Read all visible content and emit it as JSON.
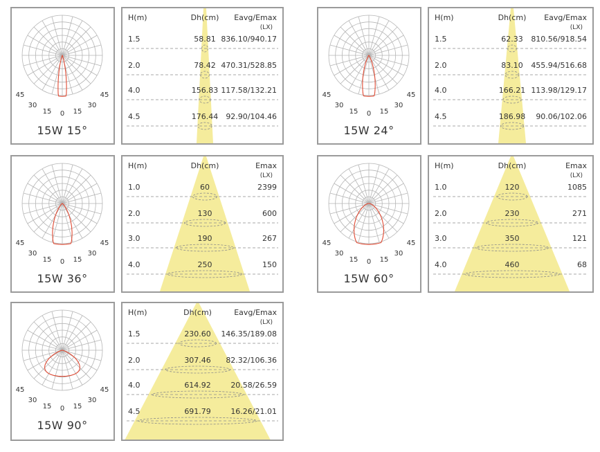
{
  "chart_data": [
    {
      "type": "table",
      "title": "15W 15°",
      "beam_deg": 15,
      "polar_ticks": [
        "45",
        "30",
        "15",
        "0",
        "15",
        "30",
        "45"
      ],
      "columns": [
        "H(m)",
        "Dh(cm)",
        "Eavg/Emax"
      ],
      "unit": "(LX)",
      "rows": [
        {
          "h": "1.5",
          "dh": "58.81",
          "e": "836.10/940.17"
        },
        {
          "h": "2.0",
          "dh": "78.42",
          "e": "470.31/528.85"
        },
        {
          "h": "4.0",
          "dh": "156.83",
          "e": "117.58/132.21"
        },
        {
          "h": "4.5",
          "dh": "176.44",
          "e": "92.90/104.46"
        }
      ]
    },
    {
      "type": "table",
      "title": "15W 24°",
      "beam_deg": 24,
      "polar_ticks": [
        "45",
        "30",
        "15",
        "0",
        "15",
        "30",
        "45"
      ],
      "columns": [
        "H(m)",
        "Dh(cm)",
        "Eavg/Emax"
      ],
      "unit": "(LX)",
      "rows": [
        {
          "h": "1.5",
          "dh": "62.33",
          "e": "810.56/918.54"
        },
        {
          "h": "2.0",
          "dh": "83.10",
          "e": "455.94/516.68"
        },
        {
          "h": "4.0",
          "dh": "166.21",
          "e": "113.98/129.17"
        },
        {
          "h": "4.5",
          "dh": "186.98",
          "e": "90.06/102.06"
        }
      ]
    },
    {
      "type": "table",
      "title": "15W 36°",
      "beam_deg": 36,
      "polar_ticks": [
        "45",
        "30",
        "15",
        "0",
        "15",
        "30",
        "45"
      ],
      "columns": [
        "H(m)",
        "Dh(cm)",
        "Emax"
      ],
      "unit": "(LX)",
      "rows": [
        {
          "h": "1.0",
          "dh": "60",
          "e": "2399"
        },
        {
          "h": "2.0",
          "dh": "130",
          "e": "600"
        },
        {
          "h": "3.0",
          "dh": "190",
          "e": "267"
        },
        {
          "h": "4.0",
          "dh": "250",
          "e": "150"
        }
      ]
    },
    {
      "type": "table",
      "title": "15W 60°",
      "beam_deg": 60,
      "polar_ticks": [
        "45",
        "30",
        "15",
        "0",
        "15",
        "30",
        "45"
      ],
      "columns": [
        "H(m)",
        "Dh(cm)",
        "Emax"
      ],
      "unit": "(LX)",
      "rows": [
        {
          "h": "1.0",
          "dh": "120",
          "e": "1085"
        },
        {
          "h": "2.0",
          "dh": "230",
          "e": "271"
        },
        {
          "h": "3.0",
          "dh": "350",
          "e": "121"
        },
        {
          "h": "4.0",
          "dh": "460",
          "e": "68"
        }
      ]
    },
    {
      "type": "table",
      "title": "15W 90°",
      "beam_deg": 90,
      "polar_ticks": [
        "45",
        "30",
        "15",
        "0",
        "15",
        "30",
        "45"
      ],
      "columns": [
        "H(m)",
        "Dh(cm)",
        "Eavg/Emax"
      ],
      "unit": "(LX)",
      "rows": [
        {
          "h": "1.5",
          "dh": "230.60",
          "e": "146.35/189.08"
        },
        {
          "h": "2.0",
          "dh": "307.46",
          "e": "82.32/106.36"
        },
        {
          "h": "4.0",
          "dh": "614.92",
          "e": "20.58/26.59"
        },
        {
          "h": "4.5",
          "dh": "691.79",
          "e": "16.26/21.01"
        }
      ]
    }
  ],
  "colors": {
    "border": "#9a9a9a",
    "grid": "#b5b5b5",
    "curve": "#e04a33",
    "beam": "#f5ec9c",
    "dash": "#8a8a8a",
    "text": "#333333"
  }
}
